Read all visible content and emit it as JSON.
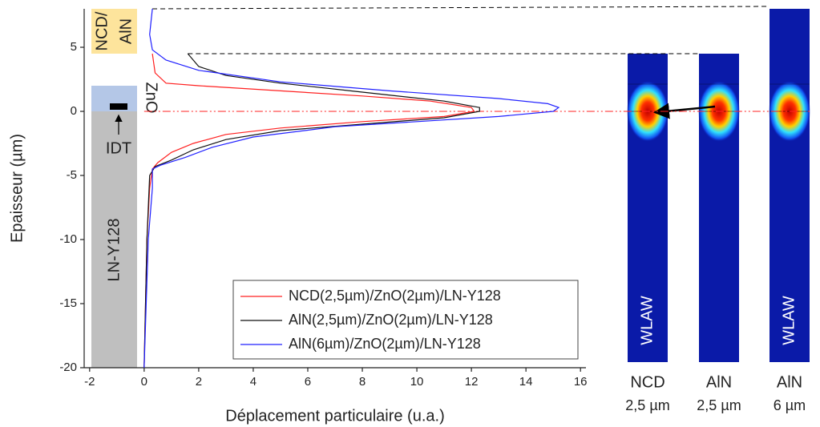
{
  "chart_data": {
    "type": "line",
    "xlabel": "Déplacement particulaire (u.a.)",
    "ylabel": "Epaisseur (µm)",
    "xlim": [
      -2.2,
      16.2
    ],
    "xticks": [
      -2,
      0,
      2,
      4,
      6,
      8,
      10,
      12,
      14,
      16
    ],
    "ylim": [
      -20,
      8
    ],
    "yticks": [
      -20,
      -15,
      -10,
      -5,
      0,
      5
    ],
    "series": [
      {
        "name": "NCD(2,5µm)/ZnO(2µm)/LN-Y128",
        "color": "#ff2020",
        "displacement": [
          0.3,
          0.4,
          0.8,
          2,
          5,
          8,
          10.5,
          12,
          12.1,
          11,
          8,
          5,
          3,
          1.8,
          1,
          0.5,
          0.3,
          0.2,
          0.1,
          0
        ],
        "depth": [
          4.5,
          3,
          2.2,
          2,
          1.6,
          1.2,
          0.8,
          0.3,
          0,
          -0.4,
          -0.8,
          -1.3,
          -1.8,
          -2.5,
          -3.2,
          -4,
          -4.5,
          -6,
          -10,
          -20
        ]
      },
      {
        "name": "AlN(2,5µm)/ZnO(2µm)/LN-Y128",
        "color": "#111111",
        "displacement": [
          1.6,
          2,
          3,
          5,
          8,
          11,
          12.3,
          12.3,
          11,
          8,
          5,
          3,
          1.8,
          1,
          0.4,
          0.2,
          0.1,
          0
        ],
        "depth": [
          4.5,
          3.5,
          2.8,
          2.2,
          1.5,
          0.8,
          0.3,
          0,
          -0.5,
          -1,
          -1.5,
          -2.2,
          -3,
          -3.8,
          -4.3,
          -5,
          -10,
          -20
        ]
      },
      {
        "name": "AlN(6µm)/ZnO(2µm)/LN-Y128",
        "color": "#2020ff",
        "displacement": [
          0.3,
          0.2,
          0.3,
          0.8,
          2,
          5,
          9,
          13,
          14.8,
          15.2,
          15,
          13,
          10,
          7,
          4,
          2.5,
          1.5,
          0.6,
          0.3,
          0.3,
          0.15,
          0
        ],
        "depth": [
          8,
          6,
          4.8,
          4,
          3.2,
          2.3,
          1.6,
          1,
          0.6,
          0.3,
          0,
          -0.4,
          -0.8,
          -1.2,
          -2,
          -2.8,
          -3.6,
          -4.2,
          -4.5,
          -6,
          -10,
          -20
        ]
      }
    ],
    "layers": [
      {
        "label": [
          "NCD/",
          "AlN"
        ],
        "span": [
          4.5,
          8
        ],
        "color": "#fde49c"
      },
      {
        "label": [
          "ZnO"
        ],
        "span": [
          0,
          2
        ],
        "color": "#b4c7e7"
      },
      {
        "label": [
          "LN-Y128"
        ],
        "span": [
          -20,
          0
        ],
        "color": "#bfbfbf"
      }
    ],
    "idt_label": "IDT",
    "panels": [
      {
        "material": "NCD",
        "thickness": "2,5 µm",
        "mode": "WLAW",
        "top": 4.5
      },
      {
        "material": "AlN",
        "thickness": "2,5 µm",
        "mode": "",
        "top": 4.5
      },
      {
        "material": "AlN",
        "thickness": "6 µm",
        "mode": "WLAW",
        "top": 8
      }
    ]
  }
}
